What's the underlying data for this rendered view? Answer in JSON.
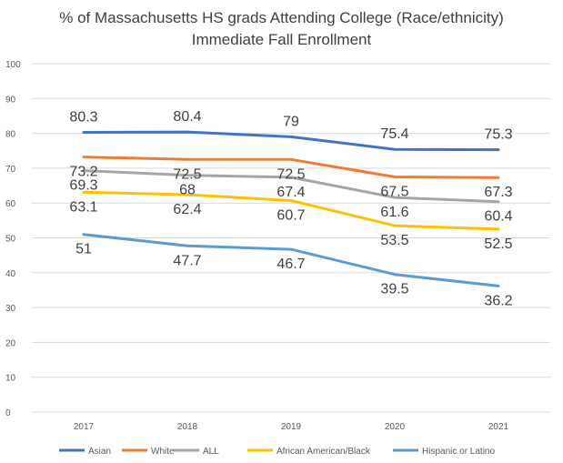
{
  "chart_data": {
    "type": "line",
    "title": "% of Massachusetts HS grads Attending College (Race/ethnicity)",
    "subtitle": "Immediate Fall Enrollment",
    "xlabel": "",
    "ylabel": "",
    "categories": [
      "2017",
      "2018",
      "2019",
      "2020",
      "2021"
    ],
    "ylim": [
      0,
      100
    ],
    "yticks": [
      "0",
      "10",
      "20",
      "30",
      "40",
      "50",
      "60",
      "70",
      "80",
      "90",
      "100"
    ],
    "grid": true,
    "legend_position": "bottom",
    "series": [
      {
        "name": "Asian",
        "color": "#4472C4",
        "values": [
          80.3,
          80.4,
          79,
          75.4,
          75.3
        ],
        "labels": [
          "80.3",
          "80.4",
          "79",
          "75.4",
          "75.3"
        ]
      },
      {
        "name": "White",
        "color": "#ED7D31",
        "values": [
          73.2,
          72.5,
          72.5,
          67.5,
          67.3
        ],
        "labels": [
          "73.2",
          "72.5",
          "72.5",
          "67.5",
          "67.3"
        ]
      },
      {
        "name": "ALL",
        "color": "#A5A5A5",
        "values": [
          69.3,
          68,
          67.4,
          61.6,
          60.4
        ],
        "labels": [
          "69.3",
          "68",
          "67.4",
          "61.6",
          "60.4"
        ]
      },
      {
        "name": "African American/Black",
        "color": "#FFC000",
        "values": [
          63.1,
          62.4,
          60.7,
          53.5,
          52.5
        ],
        "labels": [
          "63.1",
          "62.4",
          "60.7",
          "53.5",
          "52.5"
        ]
      },
      {
        "name": "Hispanic or Latino",
        "color": "#5B9BD5",
        "values": [
          51,
          47.7,
          46.7,
          39.5,
          36.2
        ],
        "labels": [
          "51",
          "47.7",
          "46.7",
          "39.5",
          "36.2"
        ]
      }
    ]
  }
}
